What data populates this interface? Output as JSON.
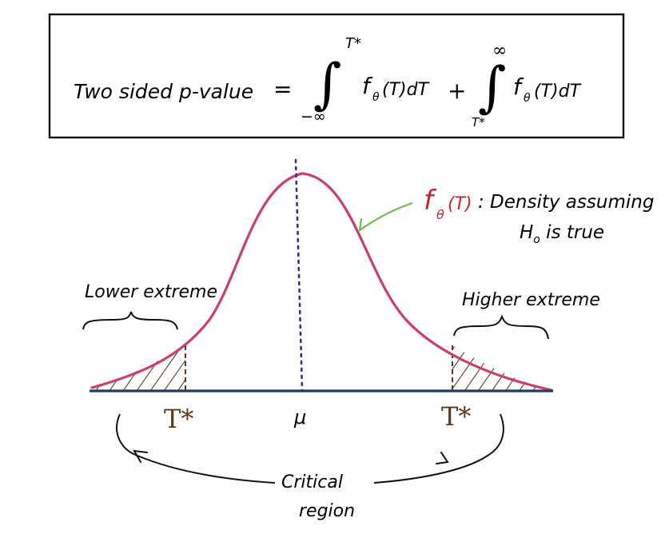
{
  "formula": {
    "lhs": "Two sided p-value",
    "equals": "=",
    "int1": {
      "upper": "T*",
      "lower": "−∞",
      "integrand": "f",
      "theta": "θ",
      "arg": "(T)dT"
    },
    "plus": "+",
    "int2": {
      "upper": "∞",
      "lower": "T*",
      "integrand": "f",
      "theta": "θ",
      "arg": "(T)dT"
    }
  },
  "density": {
    "symbol": "f",
    "theta": "θ",
    "arg": "(T)",
    "text_line1": ": Density assuming",
    "text_line2": "H",
    "text_line2_sub": "o",
    "text_line2_rest": " is true"
  },
  "labels": {
    "lower_extreme": "Lower extreme",
    "higher_extreme": "Higher extreme",
    "t_left": "T*",
    "t_right": "T*",
    "mu": "μ",
    "critical": "Critical",
    "region": "region"
  },
  "colors": {
    "curve": "#cc3f6b",
    "axis": "#1f3a68",
    "mean_line": "#3d2a8a",
    "hatch": "#5a3a1a",
    "t_label": "#5a3a1a",
    "density_symbol": "#c0292b",
    "arrow_green": "#6fbf4e",
    "ink": "#111111"
  }
}
